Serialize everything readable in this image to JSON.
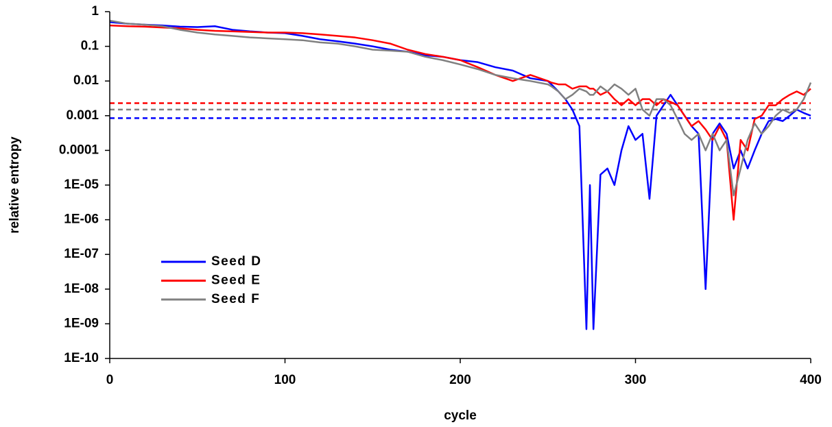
{
  "chart_data": {
    "type": "line",
    "xlabel": "cycle",
    "ylabel": "relative entropy",
    "log_y": true,
    "x": [
      0,
      10,
      20,
      30,
      40,
      50,
      60,
      70,
      80,
      90,
      100,
      110,
      120,
      130,
      140,
      150,
      160,
      170,
      180,
      190,
      200,
      210,
      220,
      230,
      240,
      250,
      252,
      256,
      260,
      264,
      268,
      272,
      274,
      276,
      280,
      284,
      288,
      292,
      296,
      300,
      304,
      308,
      312,
      316,
      320,
      324,
      328,
      332,
      336,
      340,
      344,
      348,
      352,
      356,
      360,
      364,
      368,
      372,
      376,
      380,
      384,
      388,
      392,
      396,
      400
    ],
    "series": [
      {
        "name": "Seed D",
        "color": "#0000ff",
        "values": [
          0.5,
          0.45,
          0.42,
          0.4,
          0.37,
          0.36,
          0.38,
          0.3,
          0.27,
          0.25,
          0.24,
          0.2,
          0.16,
          0.14,
          0.12,
          0.1,
          0.08,
          0.07,
          0.055,
          0.05,
          0.04,
          0.035,
          0.025,
          0.02,
          0.012,
          0.01,
          0.008,
          0.005,
          0.003,
          0.0015,
          0.0005,
          7e-10,
          1e-05,
          7e-10,
          2e-05,
          3e-05,
          1e-05,
          0.0001,
          0.0005,
          0.0002,
          0.0003,
          4e-06,
          0.001,
          0.002,
          0.004,
          0.002,
          0.001,
          0.0005,
          0.0003,
          1e-08,
          0.0003,
          0.0006,
          0.0003,
          3e-05,
          0.0001,
          3e-05,
          0.0001,
          0.0003,
          0.0007,
          0.0008,
          0.0007,
          0.001,
          0.0015,
          0.0012,
          0.001
        ]
      },
      {
        "name": "Seed E",
        "color": "#ff0000",
        "values": [
          0.4,
          0.38,
          0.37,
          0.35,
          0.33,
          0.3,
          0.28,
          0.27,
          0.26,
          0.25,
          0.25,
          0.24,
          0.22,
          0.2,
          0.18,
          0.15,
          0.12,
          0.08,
          0.06,
          0.05,
          0.04,
          0.025,
          0.015,
          0.01,
          0.015,
          0.01,
          0.009,
          0.008,
          0.008,
          0.006,
          0.007,
          0.007,
          0.006,
          0.006,
          0.004,
          0.005,
          0.003,
          0.002,
          0.003,
          0.002,
          0.003,
          0.003,
          0.002,
          0.003,
          0.0025,
          0.002,
          0.001,
          0.0005,
          0.0007,
          0.0004,
          0.0002,
          0.0005,
          0.0002,
          1e-06,
          0.0002,
          0.0001,
          0.0008,
          0.001,
          0.002,
          0.002,
          0.003,
          0.004,
          0.005,
          0.004,
          0.006
        ]
      },
      {
        "name": "Seed F",
        "color": "#808080",
        "values": [
          0.55,
          0.45,
          0.42,
          0.38,
          0.3,
          0.25,
          0.22,
          0.2,
          0.18,
          0.17,
          0.16,
          0.15,
          0.13,
          0.12,
          0.1,
          0.08,
          0.075,
          0.07,
          0.05,
          0.04,
          0.03,
          0.022,
          0.015,
          0.012,
          0.01,
          0.008,
          0.007,
          0.005,
          0.003,
          0.004,
          0.006,
          0.005,
          0.004,
          0.004,
          0.007,
          0.005,
          0.008,
          0.006,
          0.004,
          0.006,
          0.0015,
          0.001,
          0.003,
          0.003,
          0.002,
          0.0008,
          0.0003,
          0.0002,
          0.0003,
          0.0001,
          0.0003,
          0.0001,
          0.0002,
          5e-06,
          3e-05,
          0.0002,
          0.0006,
          0.0003,
          0.0005,
          0.001,
          0.0015,
          0.0012,
          0.0015,
          0.003,
          0.009
        ]
      }
    ],
    "reference_lines": [
      {
        "value": 0.0023,
        "color": "#ff0000"
      },
      {
        "value": 0.0015,
        "color": "#808080"
      },
      {
        "value": 0.00085,
        "color": "#0000ff"
      }
    ],
    "xlim": [
      0,
      400
    ],
    "xticks": [
      0,
      100,
      200,
      300,
      400
    ],
    "ylim": [
      1e-10,
      1
    ],
    "yticks": [
      {
        "value": 1e-10,
        "label": "1E-10"
      },
      {
        "value": 1e-09,
        "label": "1E-09"
      },
      {
        "value": 1e-08,
        "label": "1E-08"
      },
      {
        "value": 1e-07,
        "label": "1E-07"
      },
      {
        "value": 1e-06,
        "label": "1E-06"
      },
      {
        "value": 1e-05,
        "label": "1E-05"
      },
      0.0001,
      0.001,
      0.01,
      0.1,
      1
    ],
    "legend": "lower left"
  }
}
